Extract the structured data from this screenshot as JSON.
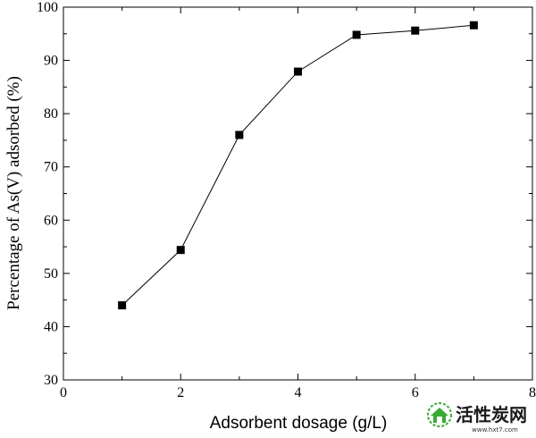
{
  "chart_data": {
    "type": "line",
    "xlabel": "Adsorbent dosage (g/L)",
    "ylabel": "Percentage of As(V) adsorbed (%)",
    "xlim": [
      0,
      8
    ],
    "ylim": [
      30,
      100
    ],
    "xticks": [
      0,
      2,
      4,
      6,
      8
    ],
    "yticks": [
      30,
      40,
      50,
      60,
      70,
      80,
      90,
      100
    ],
    "grid": false,
    "legend": "none",
    "series": [
      {
        "marker": "filled-square",
        "x": [
          1,
          2,
          3,
          4,
          5,
          6,
          7
        ],
        "y": [
          44.0,
          54.4,
          76.0,
          87.9,
          94.8,
          95.6,
          96.6
        ]
      }
    ]
  },
  "watermark": {
    "text": "活性炭网",
    "subtext": "www.hxt7.com",
    "colors": {
      "icon": "#3aaa35",
      "text": "#1a1a1a"
    }
  }
}
